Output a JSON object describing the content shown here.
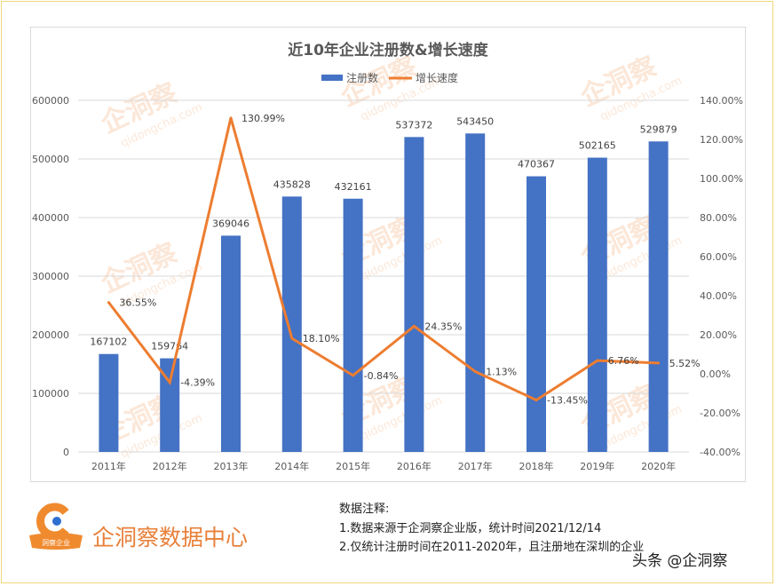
{
  "chart_data": {
    "type": "bar+line",
    "title": "近10年企业注册数&增长速度",
    "categories": [
      "2011年",
      "2012年",
      "2013年",
      "2014年",
      "2015年",
      "2016年",
      "2017年",
      "2018年",
      "2019年",
      "2020年"
    ],
    "series": [
      {
        "name": "注册数",
        "type": "bar",
        "axis": "left",
        "color": "#4472c4",
        "values": [
          167102,
          159764,
          369046,
          435828,
          432161,
          537372,
          543450,
          470367,
          502165,
          529879
        ],
        "labels": [
          "167102",
          "159764",
          "369046",
          "435828",
          "432161",
          "537372",
          "543450",
          "470367",
          "502165",
          "529879"
        ]
      },
      {
        "name": "增长速度",
        "type": "line",
        "axis": "right",
        "color": "#ed7d31",
        "values": [
          36.55,
          -4.39,
          130.99,
          18.1,
          -0.84,
          24.35,
          1.13,
          -13.45,
          6.76,
          5.52
        ],
        "labels": [
          "36.55%",
          "-4.39%",
          "130.99%",
          "18.10%",
          "-0.84%",
          "24.35%",
          "1.13%",
          "-13.45%",
          "6.76%",
          "5.52%"
        ]
      }
    ],
    "y_left": {
      "range": [
        0,
        600000
      ],
      "ticks": [
        "0",
        "100000",
        "200000",
        "300000",
        "400000",
        "500000",
        "600000"
      ]
    },
    "y_right": {
      "range": [
        -40,
        140
      ],
      "ticks": [
        "-40.00%",
        "-20.00%",
        "0.00%",
        "20.00%",
        "40.00%",
        "60.00%",
        "80.00%",
        "100.00%",
        "120.00%",
        "140.00%"
      ]
    },
    "grid": true,
    "legend": "top"
  },
  "watermark": "企洞察 qidongcha.com",
  "footer": {
    "brand": "企洞察数据中心",
    "logo_text": "洞察企业",
    "notes_title": "数据注释:",
    "note1": "1.数据来源于企洞察企业版，统计时间2021/12/14",
    "note2": "2.仅统计注册时间在2011-2020年，且注册地在深圳的企业",
    "source": "头条 @企洞察"
  }
}
